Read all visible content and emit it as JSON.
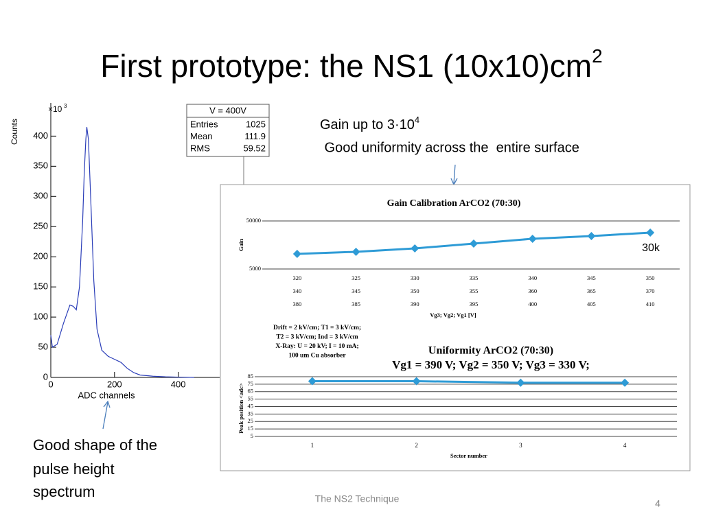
{
  "slide": {
    "title": "First prototype: the NS1 (10x10)cm",
    "title_superscript": "2",
    "gain_note": "Gain up to 3·10",
    "gain_note_superscript": "4",
    "uniformity_note": " Good uniformity across the  entire surface",
    "shape_note": [
      "Good shape of the",
      "pulse height",
      "spectrum"
    ],
    "footer": "The NS2 Technique",
    "page_number": 4
  },
  "chart_data": [
    {
      "type": "line",
      "ylabel": "Counts",
      "xlabel": "ADC channels",
      "y_multiplier": "×10",
      "y_multiplier_exponent": 3,
      "stats": {
        "title": "V = 400V",
        "rows": [
          {
            "label": "Entries",
            "value": 1025
          },
          {
            "label": "Mean",
            "value": 111.9
          },
          {
            "label": "RMS",
            "value": 59.52
          }
        ]
      },
      "x": [
        0,
        5,
        20,
        40,
        60,
        70,
        80,
        90,
        100,
        105,
        110,
        113,
        118,
        125,
        135,
        145,
        160,
        180,
        200,
        220,
        240,
        260,
        280,
        320,
        360,
        400,
        450
      ],
      "series": [
        {
          "color": "#2a3db8",
          "values": [
            70,
            50,
            55,
            90,
            120,
            118,
            112,
            150,
            260,
            340,
            395,
            415,
            395,
            300,
            160,
            80,
            45,
            35,
            30,
            25,
            15,
            8,
            4,
            2,
            1,
            0.5,
            0
          ]
        }
      ],
      "xlim": [
        0,
        530
      ],
      "ylim": [
        0,
        455
      ],
      "xticks": [
        0,
        200,
        400
      ],
      "yticks": [
        0,
        50,
        100,
        150,
        200,
        250,
        300,
        350,
        400
      ]
    },
    {
      "type": "line",
      "title": "Gain Calibration ArCO2 (70:30)",
      "ylabel": "Gain",
      "xlabel": "Vg3; Vg2; Vg1 [V]",
      "x_label_rows": [
        [
          320,
          325,
          330,
          335,
          340,
          345,
          350
        ],
        [
          340,
          345,
          350,
          355,
          360,
          365,
          370
        ],
        [
          380,
          385,
          390,
          395,
          400,
          405,
          410
        ]
      ],
      "series": [
        {
          "color": "#2e9bd6",
          "values": [
            10300,
            11400,
            13400,
            16900,
            21300,
            24200,
            28600
          ]
        }
      ],
      "log_y": true,
      "ylim": [
        5000,
        50000
      ],
      "yticks": [
        5000,
        50000
      ],
      "grid": true,
      "annotation": "30k",
      "notes": [
        "Drift = 2 kV/cm; T1 = 3 kV/cm;",
        "T2 = 3 kV/cm; Ind = 3 kV/cm",
        "X-Ray: U = 20 kV; I = 10 mA;",
        "100 um Cu absorber"
      ]
    },
    {
      "type": "line",
      "title": "Uniformity ArCO2 (70:30)",
      "subtitle": "Vg1 = 390 V; Vg2 = 350 V; Vg3 = 330 V;",
      "ylabel": "Peak position <adc>",
      "xlabel": "Sector number",
      "categories": [
        1,
        2,
        3,
        4
      ],
      "series": [
        {
          "color": "#2e9bd6",
          "values": [
            79,
            79,
            77,
            77
          ]
        }
      ],
      "ylim": [
        5,
        85
      ],
      "yticks": [
        5,
        15,
        25,
        35,
        45,
        55,
        65,
        75,
        85
      ],
      "grid": true
    }
  ]
}
